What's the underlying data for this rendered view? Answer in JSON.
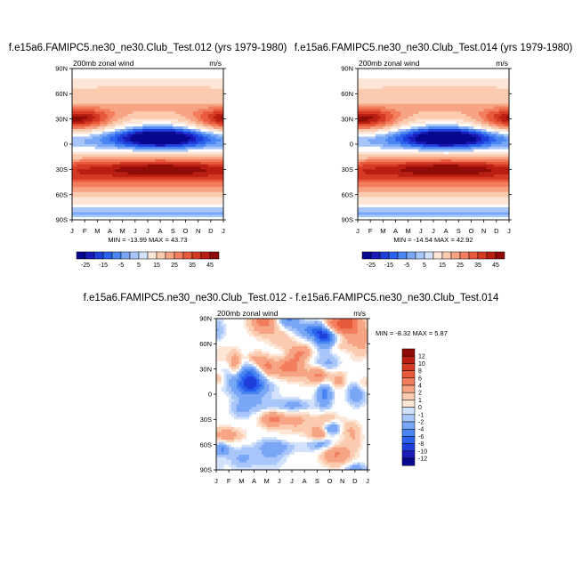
{
  "palette": {
    "neg": [
      "#08088f",
      "#1a1ab8",
      "#1f3fdc",
      "#2a62ee",
      "#4a86f2",
      "#7aa6f6",
      "#a8c6fa",
      "#d2e2fc"
    ],
    "pos": [
      "#fde6d6",
      "#fbcbb0",
      "#f7a484",
      "#f27e5e",
      "#e85a3c",
      "#d53a24",
      "#b81e12",
      "#8f0c06"
    ],
    "zero": "#ffffff"
  },
  "panels": [
    {
      "title": "f.e15a6.FAMIPC5.ne30_ne30.Club_Test.012 (yrs 1979-1980)",
      "left_label": "200mb zonal wind",
      "right_label": "m/s",
      "minmax": "MIN = -13.99 MAX =  43.73",
      "kind": "clim"
    },
    {
      "title": "f.e15a6.FAMIPC5.ne30_ne30.Club_Test.014 (yrs 1979-1980)",
      "left_label": "200mb zonal wind",
      "right_label": "m/s",
      "minmax": "MIN = -14.54 MAX =  42.92",
      "kind": "clim"
    },
    {
      "title": "f.e15a6.FAMIPC5.ne30_ne30.Club_Test.012 - f.e15a6.FAMIPC5.ne30_ne30.Club_Test.014",
      "left_label": "200mb zonal wind",
      "right_label": "m/s",
      "minmax": "MIN =  -8.32 MAX =   5.87",
      "kind": "diff"
    }
  ],
  "chart_data": [
    {
      "type": "heatmap",
      "title": "f.e15a6.FAMIPC5.ne30_ne30.Club_Test.012 (yrs 1979-1980)",
      "subtitle": "200mb zonal wind",
      "units": "m/s",
      "x_ticks": [
        "J",
        "F",
        "M",
        "A",
        "M",
        "J",
        "J",
        "A",
        "S",
        "O",
        "N",
        "D",
        "J"
      ],
      "y_ticks": [
        "90N",
        "60N",
        "30N",
        "0",
        "30S",
        "60S",
        "90S"
      ],
      "min": -13.99,
      "max": 43.73,
      "colorbar_levels": [
        -25,
        -15,
        -5,
        5,
        15,
        25,
        35,
        45
      ],
      "features": [
        {
          "lat": 30,
          "month_center": 0.5,
          "value": 40
        },
        {
          "lat": 30,
          "month_center": 12.5,
          "value": 40
        },
        {
          "lat": -30,
          "month_center": 7,
          "value": 40
        },
        {
          "lat": 8,
          "month_center": 7,
          "value": -13
        }
      ]
    },
    {
      "type": "heatmap",
      "title": "f.e15a6.FAMIPC5.ne30_ne30.Club_Test.014 (yrs 1979-1980)",
      "subtitle": "200mb zonal wind",
      "units": "m/s",
      "x_ticks": [
        "J",
        "F",
        "M",
        "A",
        "M",
        "J",
        "J",
        "A",
        "S",
        "O",
        "N",
        "D",
        "J"
      ],
      "y_ticks": [
        "90N",
        "60N",
        "30N",
        "0",
        "30S",
        "60S",
        "90S"
      ],
      "min": -14.54,
      "max": 42.92,
      "colorbar_levels": [
        -25,
        -15,
        -5,
        5,
        15,
        25,
        35,
        45
      ],
      "features": [
        {
          "lat": 30,
          "month_center": 0.5,
          "value": 40
        },
        {
          "lat": 30,
          "month_center": 12.5,
          "value": 40
        },
        {
          "lat": -30,
          "month_center": 7,
          "value": 40
        },
        {
          "lat": 8,
          "month_center": 7,
          "value": -14
        }
      ]
    },
    {
      "type": "heatmap",
      "title": "f.e15a6.FAMIPC5.ne30_ne30.Club_Test.012 - f.e15a6.FAMIPC5.ne30_ne30.Club_Test.014",
      "subtitle": "200mb zonal wind",
      "units": "m/s",
      "x_ticks": [
        "J",
        "F",
        "M",
        "A",
        "M",
        "J",
        "J",
        "A",
        "S",
        "O",
        "N",
        "D",
        "J"
      ],
      "y_ticks": [
        "90N",
        "60N",
        "30N",
        "0",
        "30S",
        "60S",
        "90S"
      ],
      "min": -8.32,
      "max": 5.87,
      "colorbar_levels": [
        12,
        10,
        8,
        6,
        4,
        2,
        1,
        0,
        -1,
        -2,
        -4,
        -6,
        -8,
        -10,
        -12
      ]
    }
  ],
  "clim_levels": [
    "-25",
    "-15",
    "-5",
    "5",
    "15",
    "25",
    "35",
    "45"
  ],
  "diff_levels": [
    "12",
    "10",
    "8",
    "6",
    "4",
    "2",
    "1",
    "0",
    "-1",
    "-2",
    "-4",
    "-6",
    "-8",
    "-10",
    "-12"
  ],
  "x_ticks": [
    "J",
    "F",
    "M",
    "A",
    "M",
    "J",
    "J",
    "A",
    "S",
    "O",
    "N",
    "D",
    "J"
  ],
  "y_ticks": [
    "90N",
    "60N",
    "30N",
    "0",
    "30S",
    "60S",
    "90S"
  ]
}
